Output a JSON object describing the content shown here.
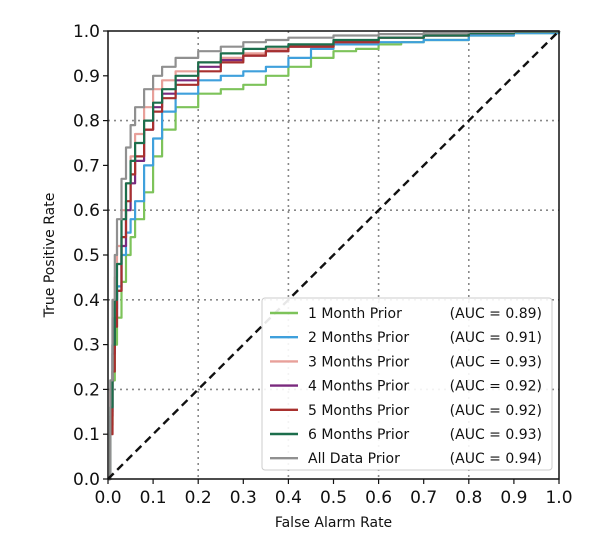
{
  "chart_data": {
    "type": "line",
    "title": "",
    "xlabel": "False Alarm Rate",
    "ylabel": "True Positive Rate",
    "xlim": [
      0.0,
      1.0
    ],
    "ylim": [
      0.0,
      1.0
    ],
    "x_ticks": [
      "0.0",
      "0.1",
      "0.2",
      "0.3",
      "0.4",
      "0.5",
      "0.6",
      "0.7",
      "0.8",
      "0.9",
      "1.0"
    ],
    "y_ticks": [
      "0.0",
      "0.1",
      "0.2",
      "0.3",
      "0.4",
      "0.5",
      "0.6",
      "0.7",
      "0.8",
      "0.9",
      "1.0"
    ],
    "grid": true,
    "legend_position": "bottom-right",
    "series": [
      {
        "name": "1 Month Prior",
        "auc": "(AUC = 0.89)",
        "color": "#7dc35a",
        "x": [
          0,
          0.005,
          0.01,
          0.015,
          0.02,
          0.03,
          0.04,
          0.05,
          0.06,
          0.08,
          0.1,
          0.12,
          0.15,
          0.2,
          0.25,
          0.3,
          0.35,
          0.4,
          0.45,
          0.5,
          0.55,
          0.6,
          0.65,
          0.7,
          0.8,
          0.9,
          1.0
        ],
        "y": [
          0,
          0.12,
          0.22,
          0.3,
          0.36,
          0.44,
          0.5,
          0.54,
          0.58,
          0.64,
          0.72,
          0.78,
          0.83,
          0.86,
          0.87,
          0.88,
          0.9,
          0.92,
          0.94,
          0.955,
          0.96,
          0.97,
          0.975,
          0.98,
          0.99,
          0.995,
          1.0
        ]
      },
      {
        "name": "2 Months Prior",
        "auc": "(AUC = 0.91)",
        "color": "#3fa0dc",
        "x": [
          0,
          0.005,
          0.01,
          0.015,
          0.02,
          0.03,
          0.04,
          0.05,
          0.06,
          0.08,
          0.1,
          0.12,
          0.15,
          0.2,
          0.25,
          0.3,
          0.35,
          0.4,
          0.45,
          0.5,
          0.6,
          0.7,
          0.8,
          0.9,
          1.0
        ],
        "y": [
          0,
          0.15,
          0.3,
          0.38,
          0.43,
          0.5,
          0.55,
          0.58,
          0.62,
          0.7,
          0.76,
          0.82,
          0.86,
          0.89,
          0.9,
          0.91,
          0.92,
          0.94,
          0.96,
          0.97,
          0.975,
          0.98,
          0.99,
          0.995,
          1.0
        ]
      },
      {
        "name": "3 Months Prior",
        "auc": "(AUC = 0.93)",
        "color": "#e8a09a",
        "x": [
          0,
          0.005,
          0.01,
          0.015,
          0.02,
          0.03,
          0.04,
          0.05,
          0.06,
          0.08,
          0.1,
          0.12,
          0.15,
          0.2,
          0.25,
          0.3,
          0.35,
          0.4,
          0.5,
          0.6,
          0.7,
          0.8,
          0.9,
          1.0
        ],
        "y": [
          0,
          0.2,
          0.36,
          0.45,
          0.52,
          0.6,
          0.66,
          0.72,
          0.77,
          0.83,
          0.87,
          0.89,
          0.91,
          0.93,
          0.94,
          0.95,
          0.96,
          0.965,
          0.975,
          0.985,
          0.99,
          0.995,
          0.998,
          1.0
        ]
      },
      {
        "name": "4 Months Prior",
        "auc": "(AUC = 0.92)",
        "color": "#7a2a7e",
        "x": [
          0,
          0.005,
          0.01,
          0.015,
          0.02,
          0.03,
          0.04,
          0.05,
          0.06,
          0.08,
          0.1,
          0.12,
          0.15,
          0.2,
          0.25,
          0.3,
          0.35,
          0.4,
          0.5,
          0.6,
          0.7,
          0.8,
          0.9,
          1.0
        ],
        "y": [
          0,
          0.14,
          0.28,
          0.36,
          0.42,
          0.52,
          0.6,
          0.66,
          0.71,
          0.78,
          0.83,
          0.86,
          0.89,
          0.92,
          0.935,
          0.945,
          0.955,
          0.965,
          0.975,
          0.985,
          0.99,
          0.995,
          0.998,
          1.0
        ]
      },
      {
        "name": "5 Months Prior",
        "auc": "(AUC = 0.92)",
        "color": "#a8302e",
        "x": [
          0,
          0.005,
          0.01,
          0.015,
          0.02,
          0.03,
          0.04,
          0.05,
          0.06,
          0.08,
          0.1,
          0.12,
          0.15,
          0.2,
          0.25,
          0.3,
          0.35,
          0.4,
          0.5,
          0.6,
          0.7,
          0.8,
          0.9,
          1.0
        ],
        "y": [
          0,
          0.1,
          0.24,
          0.34,
          0.42,
          0.54,
          0.62,
          0.68,
          0.72,
          0.78,
          0.82,
          0.85,
          0.88,
          0.91,
          0.93,
          0.945,
          0.955,
          0.965,
          0.975,
          0.985,
          0.99,
          0.995,
          0.998,
          1.0
        ]
      },
      {
        "name": "6 Months Prior",
        "auc": "(AUC = 0.93)",
        "color": "#1c6e4c",
        "x": [
          0,
          0.005,
          0.01,
          0.015,
          0.02,
          0.03,
          0.04,
          0.05,
          0.06,
          0.08,
          0.1,
          0.12,
          0.15,
          0.2,
          0.25,
          0.3,
          0.35,
          0.4,
          0.5,
          0.6,
          0.7,
          0.8,
          0.9,
          1.0
        ],
        "y": [
          0,
          0.16,
          0.3,
          0.4,
          0.48,
          0.58,
          0.66,
          0.71,
          0.75,
          0.8,
          0.84,
          0.87,
          0.9,
          0.93,
          0.95,
          0.96,
          0.965,
          0.97,
          0.98,
          0.985,
          0.99,
          0.995,
          0.998,
          1.0
        ]
      },
      {
        "name": "All Data Prior",
        "auc": "(AUC = 0.94)",
        "color": "#909090",
        "x": [
          0,
          0.005,
          0.01,
          0.015,
          0.02,
          0.03,
          0.04,
          0.05,
          0.06,
          0.08,
          0.1,
          0.12,
          0.15,
          0.2,
          0.25,
          0.3,
          0.35,
          0.4,
          0.5,
          0.6,
          0.7,
          0.8,
          0.9,
          1.0
        ],
        "y": [
          0,
          0.22,
          0.4,
          0.5,
          0.58,
          0.67,
          0.74,
          0.79,
          0.83,
          0.87,
          0.9,
          0.92,
          0.94,
          0.955,
          0.965,
          0.975,
          0.98,
          0.985,
          0.99,
          0.993,
          0.996,
          0.998,
          0.999,
          1.0
        ]
      }
    ],
    "reference_line": {
      "x": [
        0,
        1
      ],
      "y": [
        0,
        1
      ],
      "style": "dashed",
      "color": "#111111"
    }
  }
}
